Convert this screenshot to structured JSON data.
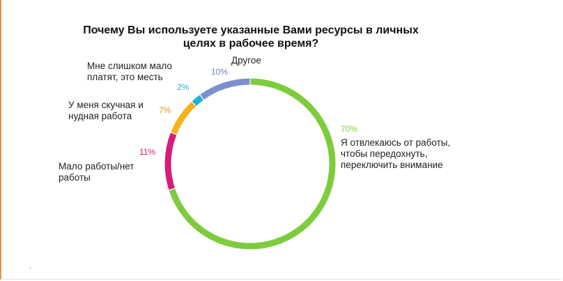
{
  "chart_data": {
    "type": "pie",
    "title": "Почему Вы используете указанные Вами ресурсы в личных целях в рабочее время?",
    "donut": true,
    "slices": [
      {
        "label": "Я отвлекаюсь от работы, чтобы передохнуть, переключить внимание",
        "value": 70,
        "value_label": "70%",
        "color": "#7dcc3c"
      },
      {
        "label": "Мало работы/нет работы",
        "value": 11,
        "value_label": "11%",
        "color": "#d81b7c"
      },
      {
        "label": "У меня скучная и нудная работа",
        "value": 7,
        "value_label": "7%",
        "color": "#f5b21b"
      },
      {
        "label": "Мне слишком мало платят, это месть",
        "value": 2,
        "value_label": "2%",
        "color": "#1fb0d6"
      },
      {
        "label": "Другое",
        "value": 10,
        "value_label": "10%",
        "color": "#7d8fcf"
      }
    ]
  },
  "footnote": "-"
}
